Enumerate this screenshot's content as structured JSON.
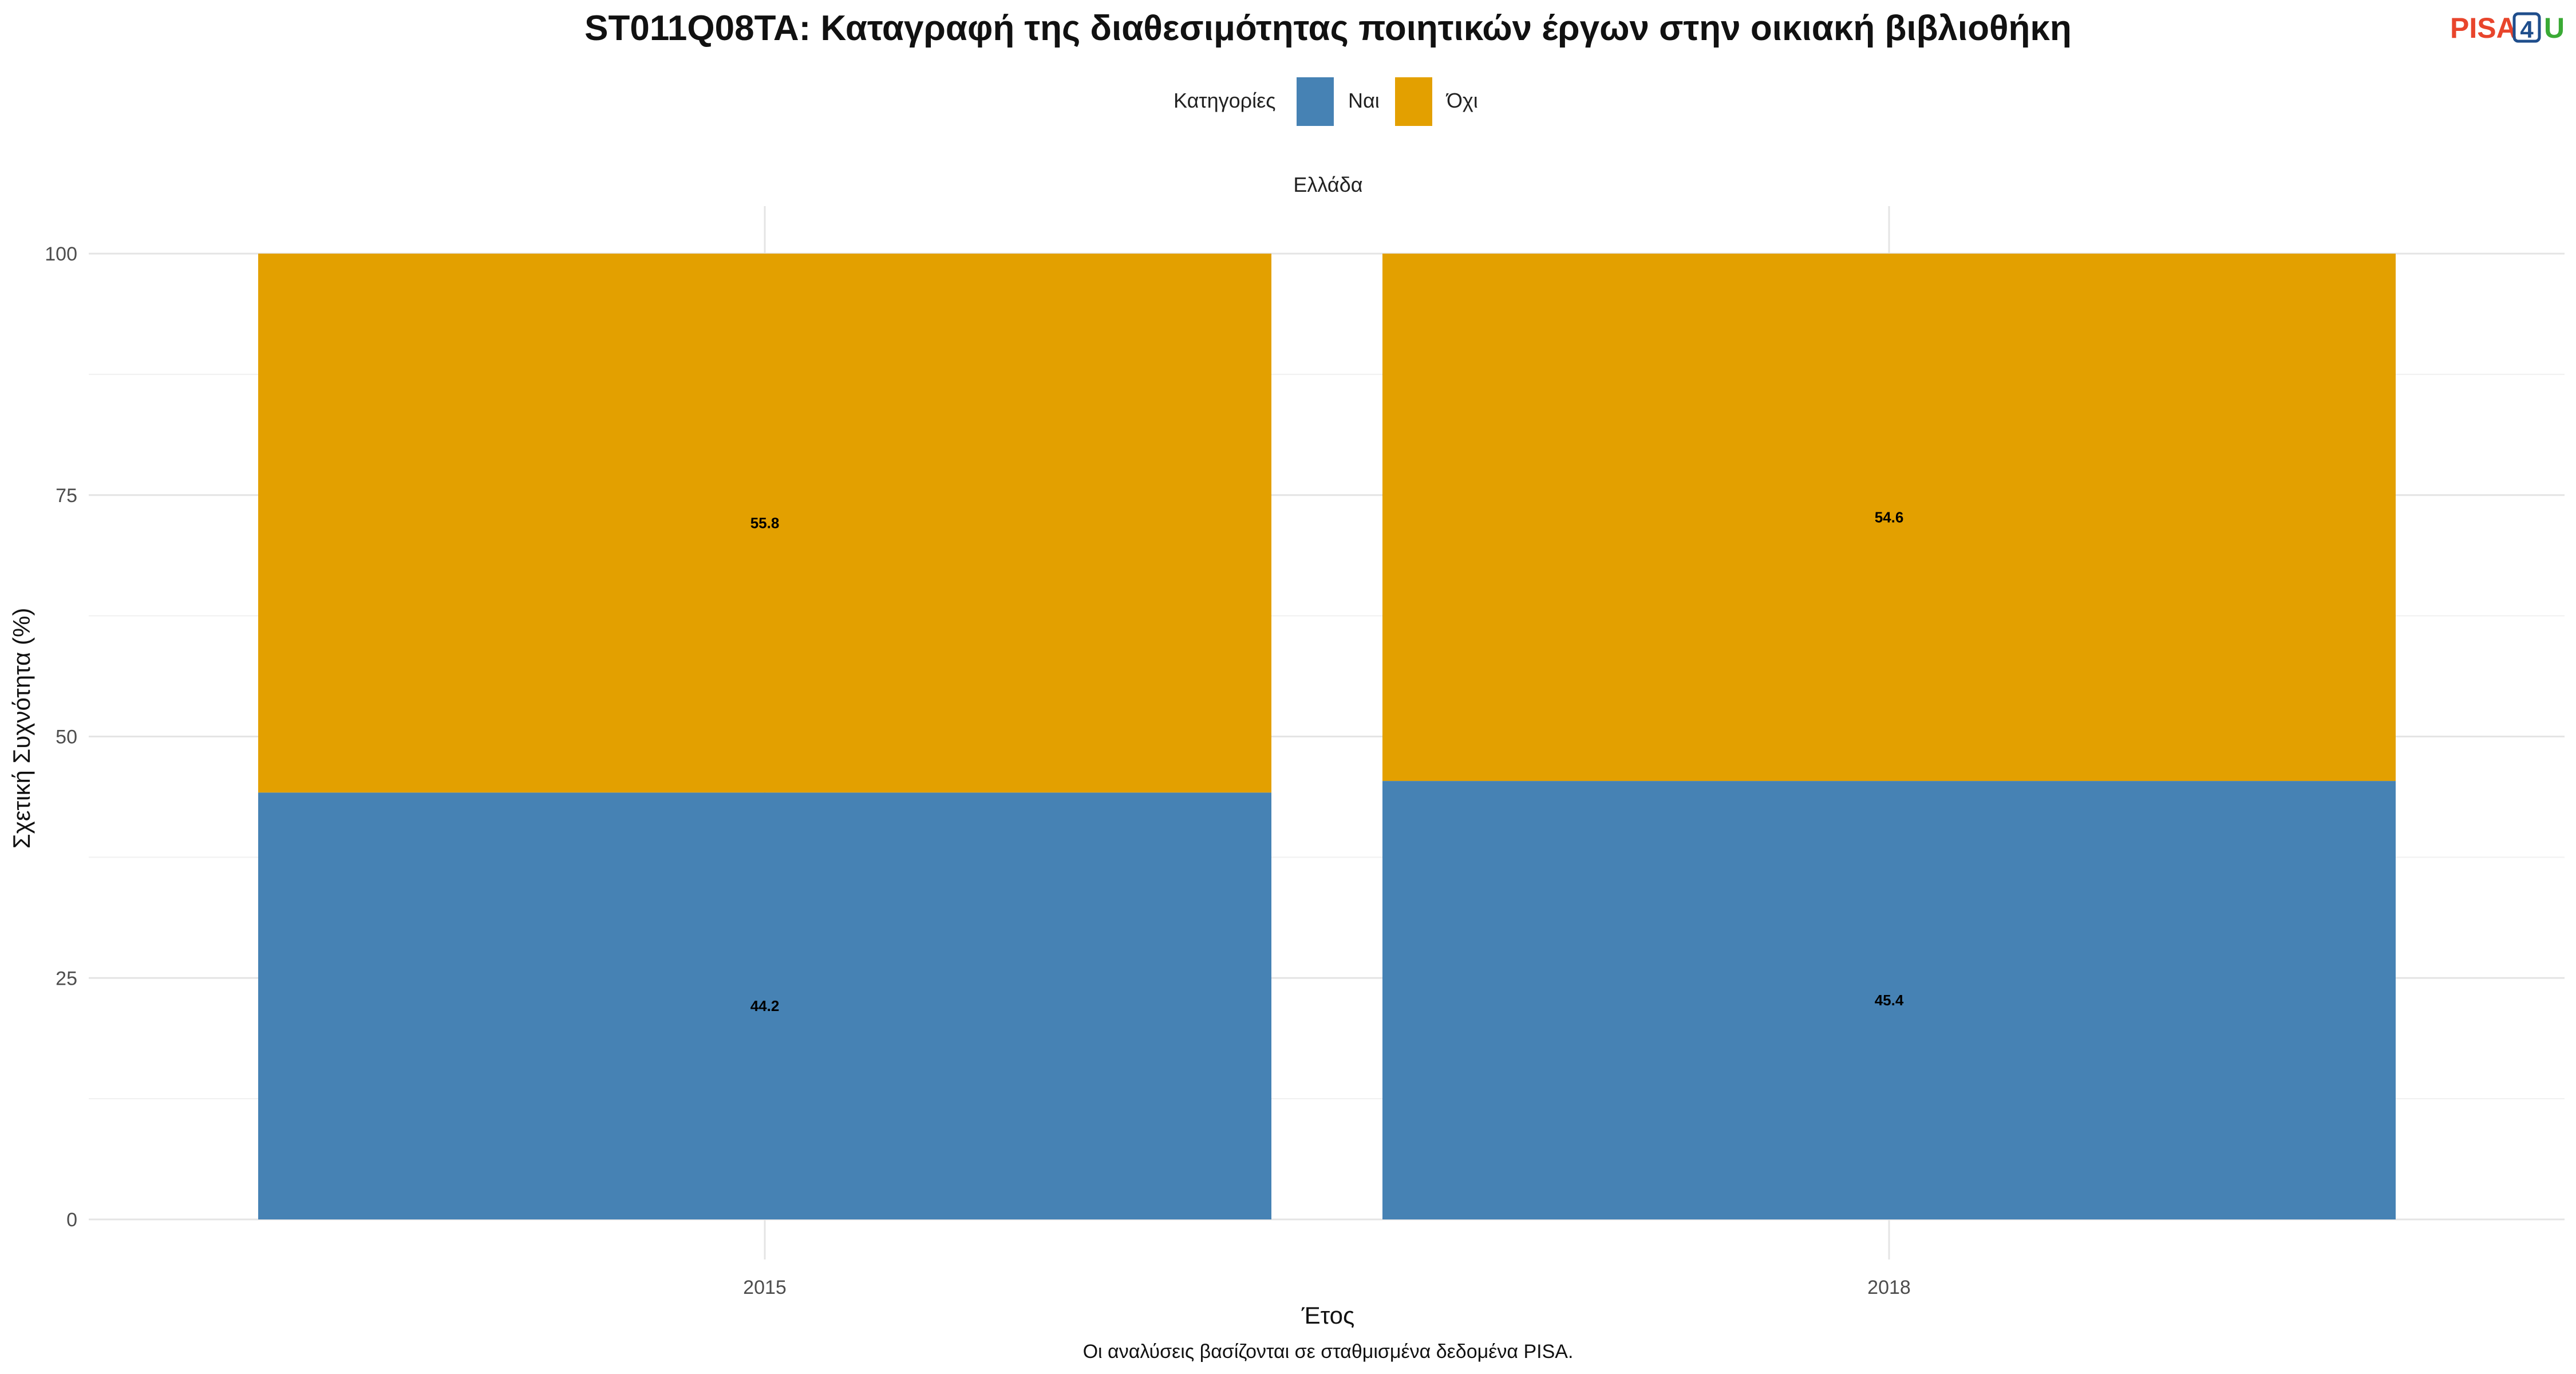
{
  "chart_data": {
    "type": "bar",
    "stacked": true,
    "title": "ST011Q08TA: Καταγραφή της διαθεσιμότητας ποιητικών έργων στην οικιακή βιβλιοθήκη",
    "facet": "Ελλάδα",
    "categories": [
      "2015",
      "2018"
    ],
    "series": [
      {
        "name": "Ναι",
        "values": [
          44.2,
          45.4
        ],
        "color": "#4682b4"
      },
      {
        "name": "Όχι",
        "values": [
          55.8,
          54.6
        ],
        "color": "#e3a000"
      }
    ],
    "xlabel": "Έτος",
    "ylabel": "Σχετική Συχνότητα (%)",
    "ylim": [
      0,
      100
    ],
    "yticks": [
      0,
      25,
      50,
      75,
      100
    ],
    "grid": true,
    "legend": {
      "title": "Κατηγορίες",
      "position": "top"
    },
    "caption": "Οι αναλύσεις βασίζονται σε σταθμισμένα δεδομένα PISA."
  },
  "logo": {
    "text_main": "PISA",
    "text_digit": "4",
    "text_end": "U",
    "color_main": "#e8452c",
    "color_digit": "#1f4e8c",
    "color_end": "#3aaa35"
  }
}
